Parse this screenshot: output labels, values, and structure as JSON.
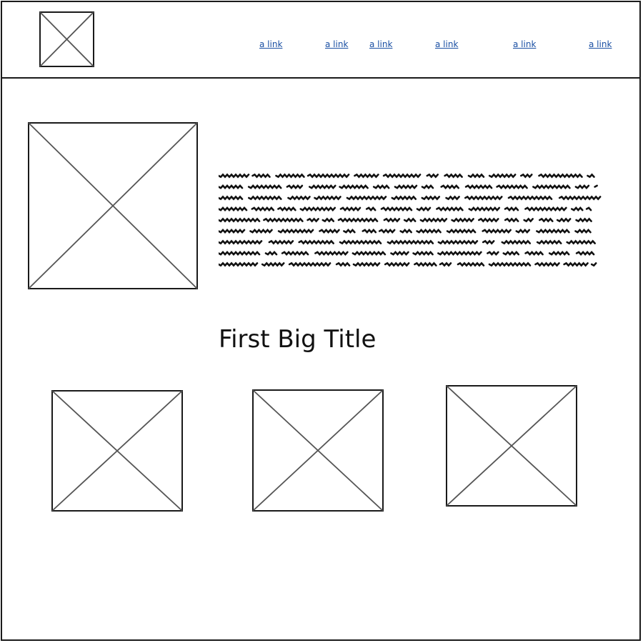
{
  "header": {
    "logo_icon": "image-placeholder-icon",
    "nav": {
      "links": [
        "a link",
        "a link",
        "a link",
        "a link",
        "a link",
        "a link"
      ]
    }
  },
  "main": {
    "hero_image_icon": "image-placeholder-icon",
    "hero_text_lines": 9,
    "section_title": "First Big Title",
    "cards": [
      {
        "image_icon": "image-placeholder-icon"
      },
      {
        "image_icon": "image-placeholder-icon"
      },
      {
        "image_icon": "image-placeholder-icon"
      }
    ]
  },
  "colors": {
    "stroke": "#1a1a1a",
    "placeholder_cross": "#555555",
    "link": "#1a4fa3",
    "background": "#ffffff"
  }
}
